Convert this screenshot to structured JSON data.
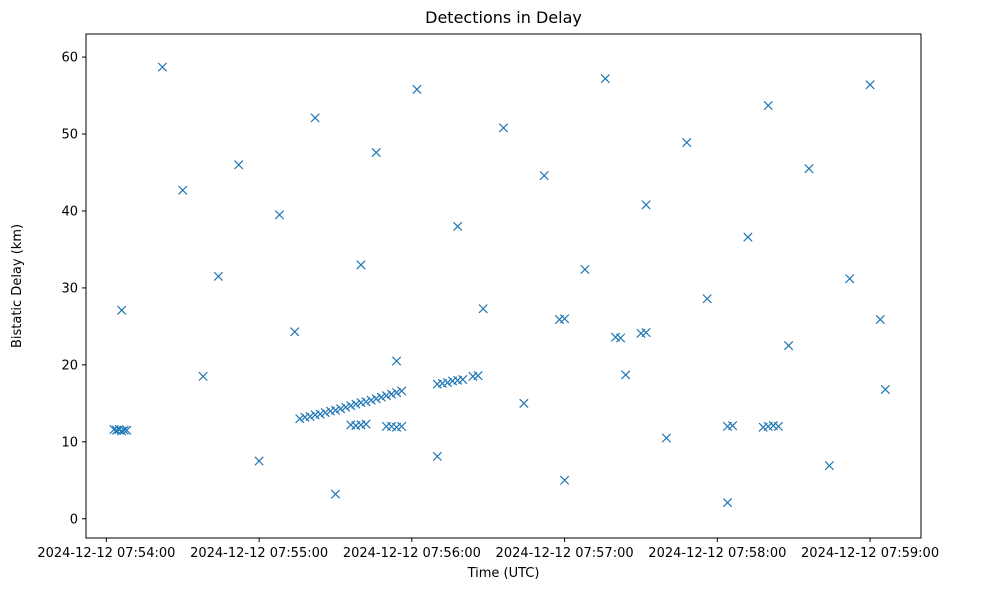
{
  "chart_data": {
    "type": "scatter",
    "title": "Detections in Delay",
    "xlabel": "Time (UTC)",
    "ylabel": "Bistatic Delay (km)",
    "marker": "x",
    "color": "#1f77b4",
    "grid": false,
    "legend": "none",
    "x_date": "2024-12-12",
    "xlim": [
      "07:53:52",
      "07:59:20"
    ],
    "ylim": [
      -2.5,
      63
    ],
    "x_ticks": [
      "2024-12-12 07:54:00",
      "2024-12-12 07:55:00",
      "2024-12-12 07:56:00",
      "2024-12-12 07:57:00",
      "2024-12-12 07:58:00",
      "2024-12-12 07:59:00"
    ],
    "y_ticks": [
      "0",
      "10",
      "20",
      "30",
      "40",
      "50",
      "60"
    ],
    "series": [
      {
        "points": [
          [
            "07:54:03",
            11.6
          ],
          [
            "07:54:04",
            11.5
          ],
          [
            "07:54:05",
            11.6
          ],
          [
            "07:54:06",
            11.4
          ],
          [
            "07:54:07",
            11.5
          ],
          [
            "07:54:08",
            11.5
          ],
          [
            "07:55:16",
            13.0
          ],
          [
            "07:55:18",
            13.2
          ],
          [
            "07:55:20",
            13.3
          ],
          [
            "07:55:22",
            13.5
          ],
          [
            "07:55:24",
            13.6
          ],
          [
            "07:55:26",
            13.8
          ],
          [
            "07:55:28",
            14.0
          ],
          [
            "07:55:30",
            14.1
          ],
          [
            "07:55:32",
            14.3
          ],
          [
            "07:55:34",
            14.5
          ],
          [
            "07:55:36",
            14.7
          ],
          [
            "07:55:38",
            14.9
          ],
          [
            "07:55:40",
            15.1
          ],
          [
            "07:55:42",
            15.2
          ],
          [
            "07:55:44",
            15.4
          ],
          [
            "07:55:46",
            15.6
          ],
          [
            "07:55:48",
            15.8
          ],
          [
            "07:55:50",
            16.0
          ],
          [
            "07:55:52",
            16.2
          ],
          [
            "07:55:54",
            16.4
          ],
          [
            "07:55:56",
            16.6
          ],
          [
            "07:56:10",
            17.5
          ],
          [
            "07:56:12",
            17.6
          ],
          [
            "07:56:14",
            17.7
          ],
          [
            "07:56:16",
            17.9
          ],
          [
            "07:56:18",
            18.0
          ],
          [
            "07:56:20",
            18.1
          ],
          [
            "07:56:24",
            18.5
          ],
          [
            "07:56:26",
            18.6
          ],
          [
            "07:55:36",
            12.2
          ],
          [
            "07:55:38",
            12.1
          ],
          [
            "07:55:40",
            12.2
          ],
          [
            "07:55:42",
            12.3
          ],
          [
            "07:55:50",
            12.0
          ],
          [
            "07:55:52",
            12.0
          ],
          [
            "07:55:54",
            11.9
          ],
          [
            "07:55:56",
            12.0
          ],
          [
            "07:56:58",
            25.9
          ],
          [
            "07:57:00",
            26.0
          ],
          [
            "07:57:20",
            23.6
          ],
          [
            "07:57:22",
            23.5
          ],
          [
            "07:57:30",
            24.1
          ],
          [
            "07:57:32",
            24.2
          ],
          [
            "07:58:04",
            12.0
          ],
          [
            "07:58:06",
            12.1
          ],
          [
            "07:58:18",
            11.9
          ],
          [
            "07:58:20",
            12.0
          ],
          [
            "07:58:22",
            12.1
          ],
          [
            "07:58:24",
            12.0
          ],
          [
            "07:54:06",
            27.1
          ],
          [
            "07:54:22",
            58.7
          ],
          [
            "07:54:30",
            42.7
          ],
          [
            "07:54:38",
            18.5
          ],
          [
            "07:54:44",
            31.5
          ],
          [
            "07:54:52",
            46.0
          ],
          [
            "07:55:00",
            7.5
          ],
          [
            "07:55:08",
            39.5
          ],
          [
            "07:55:14",
            24.3
          ],
          [
            "07:55:22",
            52.1
          ],
          [
            "07:55:30",
            3.2
          ],
          [
            "07:55:40",
            33.0
          ],
          [
            "07:55:46",
            47.6
          ],
          [
            "07:55:54",
            20.5
          ],
          [
            "07:56:02",
            55.8
          ],
          [
            "07:56:10",
            8.1
          ],
          [
            "07:56:18",
            38.0
          ],
          [
            "07:56:28",
            27.3
          ],
          [
            "07:56:36",
            50.8
          ],
          [
            "07:56:44",
            15.0
          ],
          [
            "07:56:52",
            44.6
          ],
          [
            "07:57:00",
            5.0
          ],
          [
            "07:57:08",
            32.4
          ],
          [
            "07:57:16",
            57.2
          ],
          [
            "07:57:24",
            18.7
          ],
          [
            "07:57:32",
            40.8
          ],
          [
            "07:57:40",
            10.5
          ],
          [
            "07:57:48",
            48.9
          ],
          [
            "07:57:56",
            28.6
          ],
          [
            "07:58:04",
            2.1
          ],
          [
            "07:58:12",
            36.6
          ],
          [
            "07:58:20",
            53.7
          ],
          [
            "07:58:28",
            22.5
          ],
          [
            "07:58:36",
            45.5
          ],
          [
            "07:58:44",
            6.9
          ],
          [
            "07:58:52",
            31.2
          ],
          [
            "07:59:00",
            56.4
          ],
          [
            "07:59:06",
            16.8
          ],
          [
            "07:59:04",
            25.9
          ]
        ]
      }
    ]
  }
}
